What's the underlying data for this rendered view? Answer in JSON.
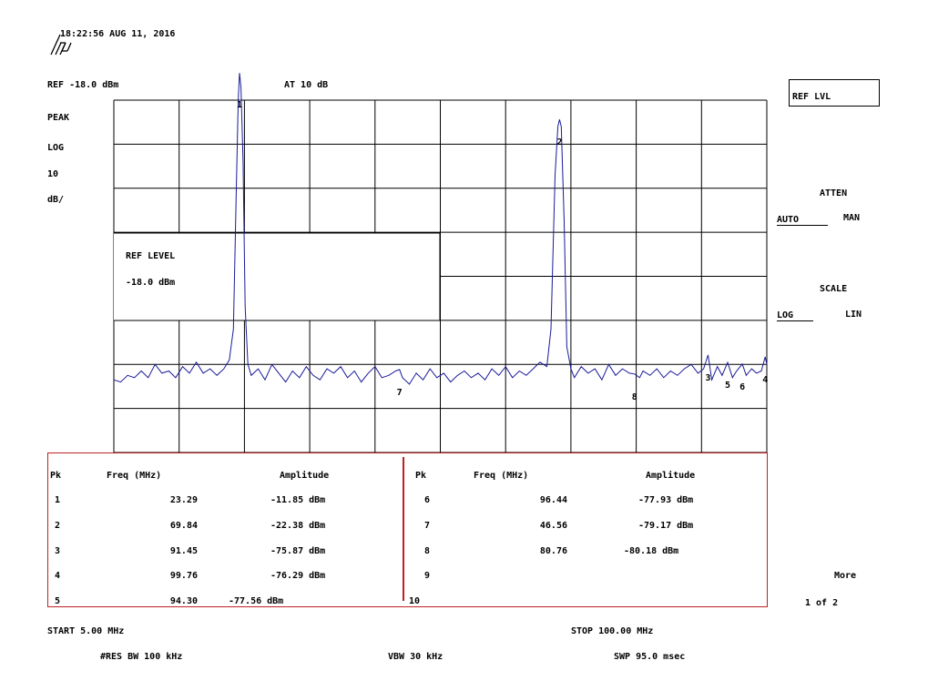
{
  "header": {
    "timestamp": "18:22:56 AUG 11, 2016",
    "logo": "hp"
  },
  "top_readouts": {
    "ref": "REF -18.0  dBm",
    "atten": "AT 10  dB"
  },
  "left_annotations": {
    "detector": "PEAK",
    "scale_type": "LOG",
    "scale_value": "10",
    "scale_unit": "dB/"
  },
  "ref_level_box": {
    "title": "REF LEVEL",
    "value": "-18.0  dBm"
  },
  "softkeys": {
    "ref_lvl": "REF LVL",
    "atten_title": "ATTEN",
    "atten_auto": "AUTO",
    "atten_man": "MAN",
    "scale_title": "SCALE",
    "scale_log": "LOG",
    "scale_lin": "LIN",
    "more": "More",
    "page": "1 of 2"
  },
  "peak_table": {
    "headers": {
      "pk": "Pk",
      "freq": "Freq (MHz)",
      "amp": "Amplitude"
    },
    "left": [
      {
        "pk": "1",
        "freq": "23.29",
        "amp": "-11.85 dBm"
      },
      {
        "pk": "2",
        "freq": "69.84",
        "amp": "-22.38 dBm"
      },
      {
        "pk": "3",
        "freq": "91.45",
        "amp": "-75.87 dBm"
      },
      {
        "pk": "4",
        "freq": "99.76",
        "amp": "-76.29 dBm"
      },
      {
        "pk": "5",
        "freq": "94.30",
        "amp": "-77.56 dBm"
      }
    ],
    "right": [
      {
        "pk": "6",
        "freq": "96.44",
        "amp": "-77.93 dBm"
      },
      {
        "pk": "7",
        "freq": "46.56",
        "amp": "-79.17 dBm"
      },
      {
        "pk": "8",
        "freq": "80.76",
        "amp": "-80.18 dBm"
      },
      {
        "pk": "9",
        "freq": "",
        "amp": ""
      },
      {
        "pk": "10",
        "freq": "",
        "amp": ""
      }
    ]
  },
  "footer": {
    "start": "START 5.00   MHz",
    "stop": "STOP 100.00   MHz",
    "rbw": "#RES BW 100   kHz",
    "vbw": "VBW 30   kHz",
    "swp": "SWP 95.0   msec"
  },
  "markers": [
    {
      "label": "1",
      "freq_mhz": 23.29,
      "amp_dbm": -11.85
    },
    {
      "label": "2",
      "freq_mhz": 69.84,
      "amp_dbm": -22.38
    },
    {
      "label": "3",
      "freq_mhz": 91.45,
      "amp_dbm": -75.87
    },
    {
      "label": "4",
      "freq_mhz": 99.76,
      "amp_dbm": -76.29
    },
    {
      "label": "5",
      "freq_mhz": 94.3,
      "amp_dbm": -77.56
    },
    {
      "label": "6",
      "freq_mhz": 96.44,
      "amp_dbm": -77.93
    },
    {
      "label": "7",
      "freq_mhz": 46.56,
      "amp_dbm": -79.17
    },
    {
      "label": "8",
      "freq_mhz": 80.76,
      "amp_dbm": -80.18
    }
  ],
  "chart_data": {
    "type": "line",
    "x_range_mhz": [
      5.0,
      100.0
    ],
    "y_ref_dbm": -18.0,
    "y_scale_db_per_div": 10,
    "y_divisions": 8,
    "x_divisions": 10,
    "trace_color": "#1a1a9a",
    "grid_color": "#000000",
    "series": [
      {
        "points": [
          [
            5.0,
            -81.5
          ],
          [
            6.0,
            -82
          ],
          [
            7.0,
            -80.5
          ],
          [
            8.0,
            -81
          ],
          [
            9.0,
            -79.5
          ],
          [
            10.0,
            -81
          ],
          [
            11.0,
            -78
          ],
          [
            12.0,
            -80
          ],
          [
            13.0,
            -79.5
          ],
          [
            14.0,
            -81
          ],
          [
            15.0,
            -78.5
          ],
          [
            16.0,
            -80
          ],
          [
            17.0,
            -77.5
          ],
          [
            18.0,
            -80
          ],
          [
            19.0,
            -79
          ],
          [
            20.0,
            -80.5
          ],
          [
            21.0,
            -79
          ],
          [
            21.8,
            -77
          ],
          [
            22.4,
            -70
          ],
          [
            22.8,
            -40
          ],
          [
            23.1,
            -18
          ],
          [
            23.29,
            -11.85
          ],
          [
            23.5,
            -15
          ],
          [
            23.8,
            -32
          ],
          [
            24.1,
            -65
          ],
          [
            24.5,
            -78
          ],
          [
            25.0,
            -80.5
          ],
          [
            26.0,
            -79
          ],
          [
            27.0,
            -81.5
          ],
          [
            28.0,
            -78
          ],
          [
            29.0,
            -80
          ],
          [
            30.0,
            -82
          ],
          [
            31.0,
            -79.5
          ],
          [
            32.0,
            -81
          ],
          [
            33.0,
            -78.5
          ],
          [
            34.0,
            -80.5
          ],
          [
            35.0,
            -81.5
          ],
          [
            36.0,
            -79
          ],
          [
            37.0,
            -80
          ],
          [
            38.0,
            -78.5
          ],
          [
            39.0,
            -81
          ],
          [
            40.0,
            -79.5
          ],
          [
            41.0,
            -82
          ],
          [
            42.0,
            -80
          ],
          [
            43.0,
            -78.5
          ],
          [
            44.0,
            -81
          ],
          [
            45.0,
            -80.5
          ],
          [
            46.0,
            -79.5
          ],
          [
            46.56,
            -79.17
          ],
          [
            47.0,
            -81
          ],
          [
            48.0,
            -82.5
          ],
          [
            49.0,
            -80
          ],
          [
            50.0,
            -81.5
          ],
          [
            51.0,
            -79
          ],
          [
            52.0,
            -81
          ],
          [
            53.0,
            -80
          ],
          [
            54.0,
            -82
          ],
          [
            55.0,
            -80.5
          ],
          [
            56.0,
            -79.5
          ],
          [
            57.0,
            -81
          ],
          [
            58.0,
            -80
          ],
          [
            59.0,
            -81.5
          ],
          [
            60.0,
            -79
          ],
          [
            61.0,
            -80.5
          ],
          [
            62.0,
            -78.5
          ],
          [
            63.0,
            -81
          ],
          [
            64.0,
            -79.5
          ],
          [
            65.0,
            -80.5
          ],
          [
            66.0,
            -79
          ],
          [
            67.0,
            -77.5
          ],
          [
            68.0,
            -78.5
          ],
          [
            68.6,
            -70
          ],
          [
            69.2,
            -35
          ],
          [
            69.6,
            -24
          ],
          [
            69.84,
            -22.38
          ],
          [
            70.1,
            -24
          ],
          [
            70.5,
            -45
          ],
          [
            70.9,
            -74
          ],
          [
            71.5,
            -79
          ],
          [
            72.0,
            -81
          ],
          [
            73.0,
            -78.5
          ],
          [
            74.0,
            -80
          ],
          [
            75.0,
            -79
          ],
          [
            76.0,
            -81.5
          ],
          [
            77.0,
            -78
          ],
          [
            78.0,
            -80.5
          ],
          [
            79.0,
            -79
          ],
          [
            80.0,
            -80
          ],
          [
            80.76,
            -80.18
          ],
          [
            81.5,
            -81
          ],
          [
            82.0,
            -79.5
          ],
          [
            83.0,
            -80.5
          ],
          [
            84.0,
            -79
          ],
          [
            85.0,
            -81
          ],
          [
            86.0,
            -79.5
          ],
          [
            87.0,
            -80.5
          ],
          [
            88.0,
            -79
          ],
          [
            89.0,
            -78
          ],
          [
            90.0,
            -80
          ],
          [
            90.8,
            -79
          ],
          [
            91.45,
            -75.87
          ],
          [
            92.0,
            -81.5
          ],
          [
            92.8,
            -78.5
          ],
          [
            93.5,
            -80.5
          ],
          [
            94.3,
            -77.56
          ],
          [
            95.0,
            -81
          ],
          [
            95.6,
            -79.5
          ],
          [
            96.44,
            -77.93
          ],
          [
            97.0,
            -80.5
          ],
          [
            97.8,
            -79
          ],
          [
            98.5,
            -80
          ],
          [
            99.2,
            -79.5
          ],
          [
            99.76,
            -76.29
          ],
          [
            100.0,
            -78
          ]
        ]
      }
    ]
  }
}
